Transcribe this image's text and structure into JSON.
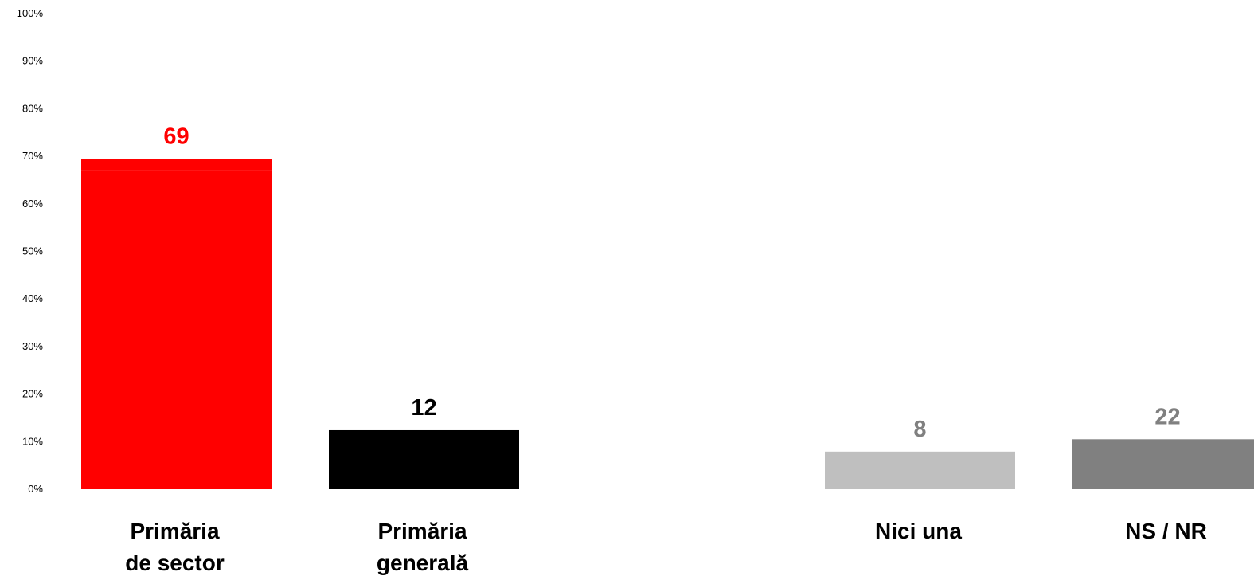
{
  "chart_data": {
    "type": "bar",
    "categories": [
      [
        "Primăria",
        "de sector"
      ],
      [
        "Primăria",
        "generală"
      ],
      [
        "Nici una"
      ],
      [
        "NS / NR"
      ]
    ],
    "values": [
      69,
      12,
      8,
      22
    ],
    "data_labels": [
      "69",
      "12",
      "8",
      "22"
    ],
    "colors": [
      "#ff0000",
      "#000000",
      "#bfbfbf",
      "#808080"
    ],
    "label_colors": [
      "#ff0000",
      "#000000",
      "#808080",
      "#808080"
    ],
    "yticks": [
      "0%",
      "10%",
      "20%",
      "30%",
      "40%",
      "50%",
      "60%",
      "70%",
      "80%",
      "90%",
      "100%"
    ],
    "ylim": [
      0,
      100
    ],
    "grid": false,
    "legend": false
  }
}
